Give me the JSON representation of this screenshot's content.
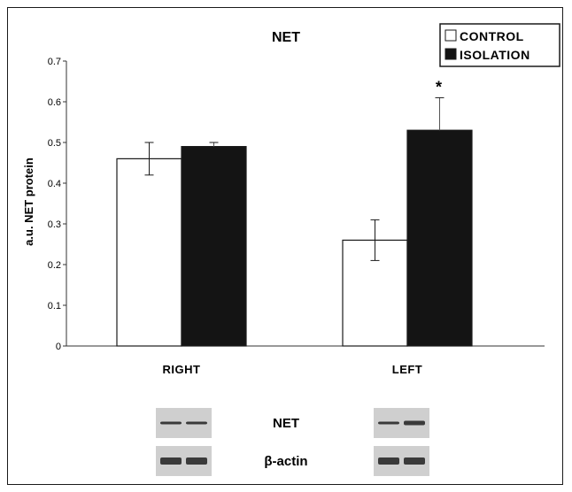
{
  "chart_data": {
    "type": "bar",
    "title": "NET",
    "xlabel": "",
    "ylabel": "a.u. NET protein",
    "ylim": [
      0,
      0.7
    ],
    "yticks": [
      0,
      0.1,
      0.2,
      0.3,
      0.4,
      0.5,
      0.6,
      0.7
    ],
    "ytick_labels": [
      "0",
      "0.1",
      "0.2",
      "0.3",
      "0.4",
      "0.5",
      "0.6",
      "0.7"
    ],
    "categories": [
      "RIGHT",
      "LEFT"
    ],
    "series": [
      {
        "name": "CONTROL",
        "color": "#ffffff",
        "values": [
          0.46,
          0.26
        ],
        "errors": [
          0.04,
          0.05
        ]
      },
      {
        "name": "ISOLATION",
        "color": "#141414",
        "values": [
          0.49,
          0.53
        ],
        "errors": [
          0.01,
          0.08
        ]
      }
    ],
    "annotations": [
      {
        "text": "*",
        "category": "LEFT",
        "series": "ISOLATION"
      }
    ],
    "legend_position": "top-right",
    "grid": false
  },
  "blots": {
    "labels": [
      "NET",
      "β-actin"
    ]
  },
  "colors": {
    "frame": "#1a1a1a",
    "axis": "#333333",
    "blot_background": "#cfcfcf",
    "blot_band": "#3a3a3a"
  }
}
